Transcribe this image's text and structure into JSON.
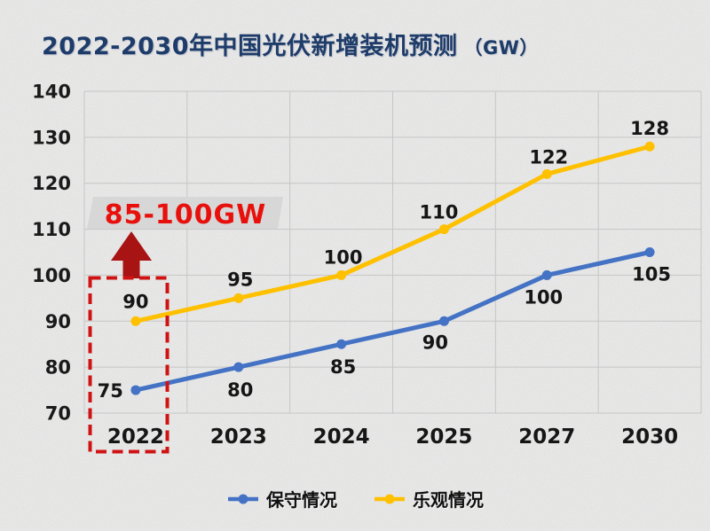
{
  "title": {
    "text": "2022-2030年中国光伏新增装机预测",
    "unit": "（GW）"
  },
  "annotation": {
    "label": "85-100GW",
    "highlighted_year": "2022"
  },
  "legend": [
    {
      "name": "保守情况",
      "color": "#4472C4"
    },
    {
      "name": "乐观情况",
      "color": "#FFC000"
    }
  ],
  "colors": {
    "title": "#1e3c69",
    "banner_fill": "#d7d7d7",
    "banner_text": "#e8100c",
    "arrow": "#a81414",
    "highlight_box": "#cf1212",
    "gridline": "#c6c6c6"
  },
  "chart_data": {
    "type": "line",
    "title": "2022-2030年中国光伏新增装机预测（GW）",
    "categories": [
      "2022",
      "2023",
      "2024",
      "2025",
      "2027",
      "2030"
    ],
    "series": [
      {
        "name": "保守情况",
        "color": "#4472C4",
        "values": [
          75,
          80,
          85,
          90,
          100,
          105
        ],
        "label_offsets": [
          {
            "dx": -14,
            "dy": 8,
            "anchor": "end"
          },
          {
            "dx": 2,
            "dy": 33,
            "anchor": "middle"
          },
          {
            "dx": 2,
            "dy": 33,
            "anchor": "middle"
          },
          {
            "dx": -10,
            "dy": 31,
            "anchor": "middle"
          },
          {
            "dx": -4,
            "dy": 32,
            "anchor": "middle"
          },
          {
            "dx": 2,
            "dy": 32,
            "anchor": "middle"
          }
        ]
      },
      {
        "name": "乐观情况",
        "color": "#FFC000",
        "values": [
          90,
          95,
          100,
          110,
          122,
          128
        ],
        "label_offsets": [
          {
            "dx": 0,
            "dy": -15,
            "anchor": "middle"
          },
          {
            "dx": 2,
            "dy": -14,
            "anchor": "middle"
          },
          {
            "dx": 2,
            "dy": -13,
            "anchor": "middle"
          },
          {
            "dx": -6,
            "dy": -12,
            "anchor": "middle"
          },
          {
            "dx": 2,
            "dy": -12,
            "anchor": "middle"
          },
          {
            "dx": 0,
            "dy": -13,
            "anchor": "middle"
          }
        ]
      }
    ],
    "xlabel": "",
    "ylabel": "",
    "ylim": [
      70,
      140
    ],
    "yticks": [
      140,
      130,
      120,
      110,
      100,
      90,
      80,
      70
    ],
    "grid": true,
    "legend_position": "bottom",
    "annotations": {
      "banner_label": "85-100GW",
      "highlight_box_category": "2022",
      "arrow": "up"
    }
  }
}
